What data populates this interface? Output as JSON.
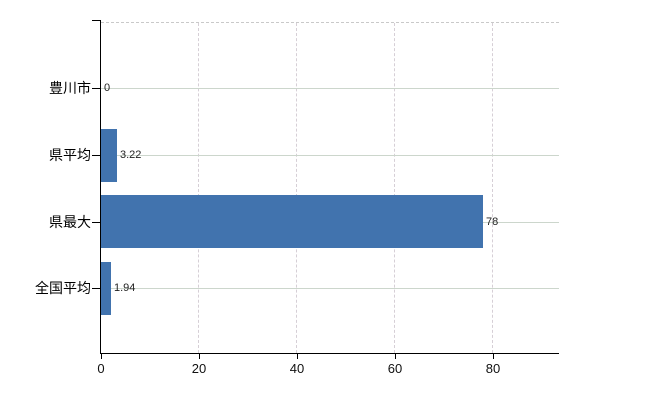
{
  "chart_data": {
    "type": "bar",
    "orientation": "horizontal",
    "title": "",
    "categories": [
      "豊川市",
      "県平均",
      "県最大",
      "全国平均"
    ],
    "values": [
      0,
      3.22,
      78,
      1.94
    ],
    "value_labels": [
      "0",
      "3.22",
      "78",
      "1.94"
    ],
    "x_tick_labels": [
      "0",
      "20",
      "40",
      "60",
      "80"
    ],
    "x_tick_values": [
      0,
      20,
      40,
      60,
      80
    ],
    "xlim": [
      0,
      93.5
    ],
    "grid": {
      "vertical_style": "dashed",
      "horizontal_style": "solid",
      "top_border_style": "dashed"
    },
    "legend_position": "none",
    "colors": {
      "bar": "#4173ae",
      "axis": "#000000",
      "grid_vertical": "#d6cfd6",
      "grid_horizontal": "#ccd6cc",
      "plot_top_border": "#c9c9c9",
      "value_label": "#222222",
      "x_tick_label": "#111111",
      "category_label": "#000000",
      "background": "#ffffff"
    }
  }
}
